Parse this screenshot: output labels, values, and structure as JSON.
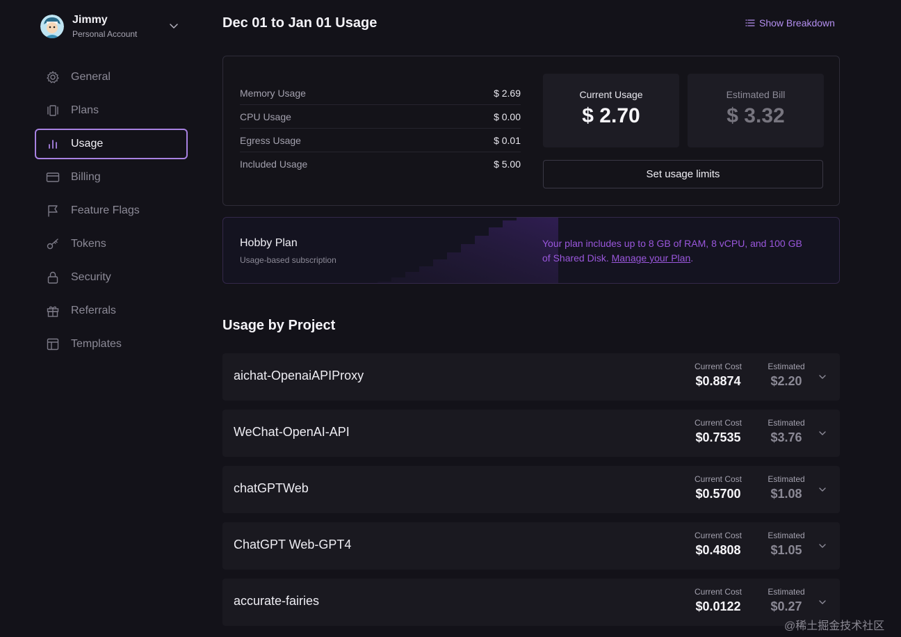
{
  "account": {
    "name": "Jimmy",
    "type": "Personal Account",
    "avatar_icon": "avatar-icon"
  },
  "sidebar": {
    "items": [
      {
        "label": "General",
        "icon": "gear-icon",
        "active": false
      },
      {
        "label": "Plans",
        "icon": "plans-icon",
        "active": false
      },
      {
        "label": "Usage",
        "icon": "bar-chart-icon",
        "active": true
      },
      {
        "label": "Billing",
        "icon": "credit-card-icon",
        "active": false
      },
      {
        "label": "Feature Flags",
        "icon": "flag-icon",
        "active": false
      },
      {
        "label": "Tokens",
        "icon": "key-icon",
        "active": false
      },
      {
        "label": "Security",
        "icon": "lock-icon",
        "active": false
      },
      {
        "label": "Referrals",
        "icon": "gift-icon",
        "active": false
      },
      {
        "label": "Templates",
        "icon": "template-icon",
        "active": false
      }
    ]
  },
  "header": {
    "title": "Dec 01 to Jan 01 Usage",
    "breakdown_label": "Show Breakdown"
  },
  "usage": {
    "rows": [
      {
        "label": "Memory Usage",
        "value": "$ 2.69"
      },
      {
        "label": "CPU Usage",
        "value": "$ 0.00"
      },
      {
        "label": "Egress Usage",
        "value": "$ 0.01"
      },
      {
        "label": "Included Usage",
        "value": "$ 5.00"
      }
    ],
    "current_label": "Current Usage",
    "current_value": "$ 2.70",
    "estimated_label": "Estimated Bill",
    "estimated_value": "$ 3.32",
    "limits_button": "Set usage limits"
  },
  "plan": {
    "title": "Hobby Plan",
    "subtitle": "Usage-based subscription",
    "description": "Your plan includes up to 8 GB of RAM, 8 vCPU, and 100 GB of Shared Disk. ",
    "link": "Manage your Plan",
    "link_suffix": "."
  },
  "projects": {
    "title": "Usage by Project",
    "current_label": "Current Cost",
    "estimated_label": "Estimated",
    "items": [
      {
        "name": "aichat-OpenaiAPIProxy",
        "current": "$0.8874",
        "estimated": "$2.20"
      },
      {
        "name": "WeChat-OpenAI-API",
        "current": "$0.7535",
        "estimated": "$3.76"
      },
      {
        "name": "chatGPTWeb",
        "current": "$0.5700",
        "estimated": "$1.08"
      },
      {
        "name": "ChatGPT Web-GPT4",
        "current": "$0.4808",
        "estimated": "$1.05"
      },
      {
        "name": "accurate-fairies",
        "current": "$0.0122",
        "estimated": "$0.27"
      }
    ]
  },
  "watermark": "@稀土掘金技术社区",
  "colors": {
    "background": "#131219",
    "accent": "#a882e2",
    "plan_text": "#9a57dc"
  }
}
